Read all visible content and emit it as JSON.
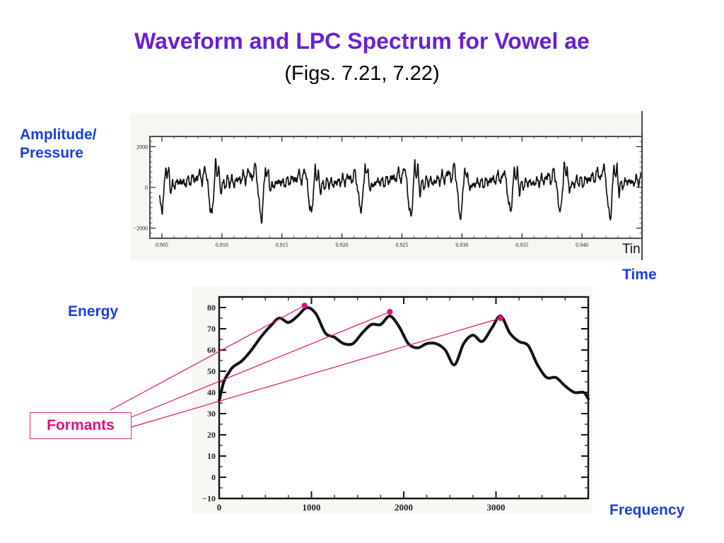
{
  "slide": {
    "title": "Waveform and LPC Spectrum for Vowel ae",
    "subtitle": "(Figs. 7.21, 7.22)",
    "labels": {
      "amplitude": "Amplitude/\nPressure",
      "time": "Time",
      "energy": "Energy",
      "frequency": "Frequency",
      "formants": "Formants",
      "time_cut": "Tin"
    }
  },
  "colors": {
    "title": "#6b1fd1",
    "axis_labels": "#1a3fd6",
    "formant": "#e0107a",
    "trace": "#111111"
  },
  "chart_data": [
    {
      "type": "line",
      "title": "",
      "xlabel": "Time",
      "ylabel": "Amplitude/ Pressure",
      "xlim": [
        0.904,
        0.945
      ],
      "ylim": [
        -2500,
        2500
      ],
      "xticks": [
        "0.905",
        "0.910",
        "0.915",
        "0.920",
        "0.925",
        "0.930",
        "0.935",
        "0.940"
      ],
      "yticks": [
        "2000",
        "0",
        "−2000"
      ],
      "grid": false,
      "pitch_period_s": 0.00415,
      "period_start_s": 0.9052,
      "x": [
        0.905,
        0.906,
        0.907,
        0.908,
        0.909,
        0.91,
        0.911,
        0.912,
        0.913,
        0.914,
        0.915,
        0.916,
        0.917,
        0.918,
        0.919,
        0.92,
        0.921,
        0.922,
        0.923,
        0.924,
        0.925,
        0.926,
        0.927,
        0.928,
        0.929,
        0.93,
        0.931,
        0.932,
        0.933,
        0.934,
        0.935,
        0.936,
        0.937,
        0.938,
        0.939,
        0.94,
        0.941,
        0.942,
        0.943,
        0.944,
        0.945
      ],
      "values": [
        -1100,
        1050,
        -150,
        200,
        250,
        -1400,
        1400,
        300,
        -100,
        150,
        -1350,
        600,
        250,
        -200,
        100,
        -1600,
        1450,
        400,
        0,
        200,
        -1450,
        900,
        250,
        -150,
        100,
        -1450,
        1500,
        500,
        0,
        150,
        -1300,
        1000,
        200,
        -100,
        150,
        -1200,
        1200,
        350,
        0,
        200,
        -1000
      ]
    },
    {
      "type": "line",
      "title": "",
      "xlabel": "Frequency",
      "ylabel": "Energy",
      "xlim": [
        0,
        4000
      ],
      "ylim": [
        -10,
        85
      ],
      "xticks": [
        "0",
        "1000",
        "2000",
        "3000"
      ],
      "yticks": [
        "80",
        "70",
        "60",
        "50",
        "40",
        "30",
        "20",
        "10",
        "0",
        "−10"
      ],
      "grid": false,
      "x": [
        0,
        50,
        100,
        150,
        250,
        350,
        450,
        550,
        650,
        750,
        850,
        950,
        1050,
        1150,
        1250,
        1350,
        1450,
        1550,
        1650,
        1750,
        1850,
        1950,
        2050,
        2150,
        2250,
        2350,
        2450,
        2550,
        2650,
        2750,
        2850,
        2950,
        3050,
        3150,
        3250,
        3350,
        3450,
        3550,
        3650,
        3750,
        3850,
        3950,
        4000
      ],
      "values": [
        36,
        45,
        49,
        52,
        55,
        60,
        66,
        71,
        75,
        73,
        76,
        80,
        77,
        68,
        66,
        63,
        63,
        68,
        72,
        72,
        76,
        71,
        63,
        61,
        63,
        63,
        60,
        53,
        63,
        67,
        64,
        70,
        76,
        68,
        64,
        62,
        53,
        47,
        47,
        43,
        40,
        40,
        37
      ],
      "formants": [
        {
          "x": 925,
          "y": 81
        },
        {
          "x": 1850,
          "y": 78
        },
        {
          "x": 3050,
          "y": 75
        }
      ]
    }
  ]
}
